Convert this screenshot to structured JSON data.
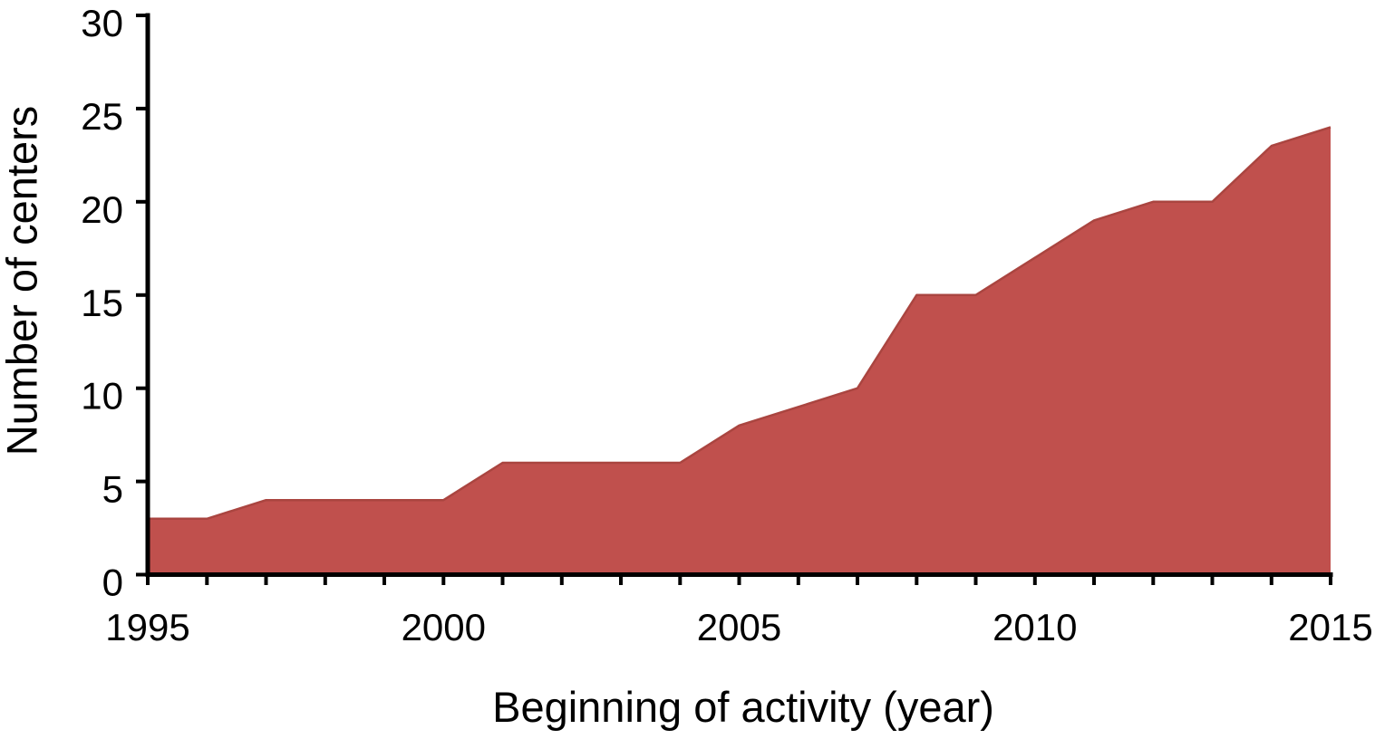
{
  "chart_data": {
    "type": "area",
    "title": "",
    "xlabel": "Beginning of activity (year)",
    "ylabel": "Number of centers",
    "x": [
      1995,
      1996,
      1997,
      1998,
      1999,
      2000,
      2001,
      2002,
      2003,
      2004,
      2005,
      2006,
      2007,
      2008,
      2009,
      2010,
      2011,
      2012,
      2013,
      2014,
      2015
    ],
    "values": [
      3,
      3,
      4,
      4,
      4,
      4,
      6,
      6,
      6,
      6,
      8,
      9,
      10,
      15,
      15,
      17,
      19,
      20,
      20,
      23,
      24
    ],
    "xlim": [
      1995,
      2015
    ],
    "ylim": [
      0,
      30
    ],
    "yticks": [
      0,
      5,
      10,
      15,
      20,
      25,
      30
    ],
    "ytick_labels": [
      "0",
      "5",
      "10",
      "15",
      "20",
      "25",
      "30"
    ],
    "xticks": {
      "minor_step": 1,
      "labeled": [
        1995,
        2000,
        2005,
        2010,
        2015
      ],
      "labels": [
        "1995",
        "2000",
        "2005",
        "2010",
        "2015"
      ]
    },
    "grid": false,
    "legend": null,
    "colors": {
      "fill": "#c0504d",
      "edge": "#aa4540",
      "axis": "#000000",
      "text": "#000000",
      "background": "#ffffff"
    }
  }
}
